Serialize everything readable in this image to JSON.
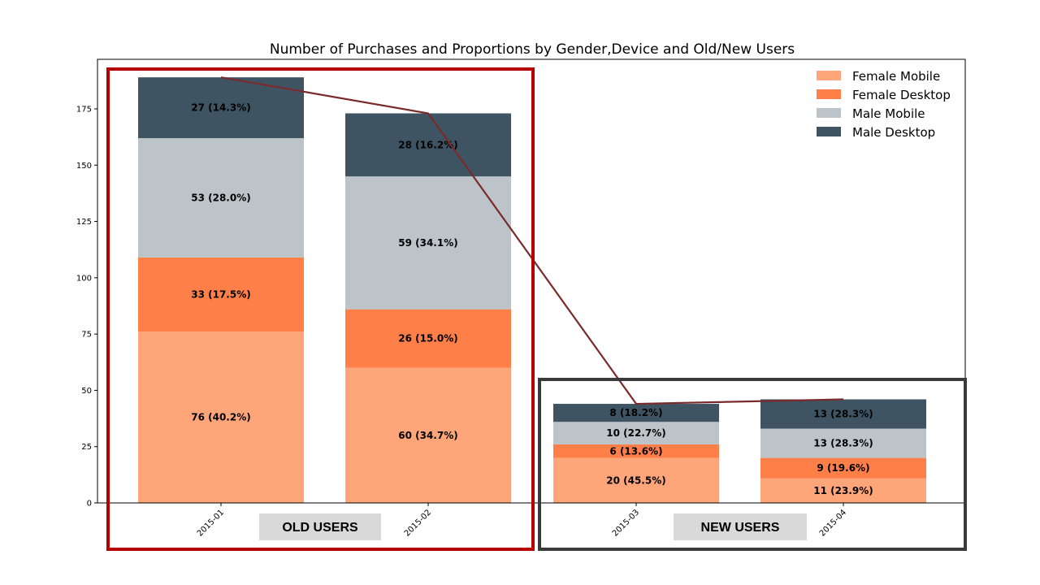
{
  "chart_data": {
    "type": "bar",
    "stacked": true,
    "title": "Number of Purchases and Proportions by Gender,Device and Old/New Users",
    "categories": [
      "2015-01",
      "2015-02",
      "2015-03",
      "2015-04"
    ],
    "series": [
      {
        "name": "Female Mobile",
        "color": "#FFA57A",
        "values": [
          76,
          60,
          20,
          11
        ],
        "labels": [
          "76 (40.2%)",
          "60 (34.7%)",
          "20 (45.5%)",
          "11 (23.9%)"
        ]
      },
      {
        "name": "Female Desktop",
        "color": "#FF7F48",
        "values": [
          33,
          26,
          6,
          9
        ],
        "labels": [
          "33 (17.5%)",
          "26 (15.0%)",
          "6 (13.6%)",
          "9 (19.6%)"
        ]
      },
      {
        "name": "Male Mobile",
        "color": "#BCC4C9",
        "values": [
          53,
          59,
          10,
          13
        ],
        "labels": [
          "53 (28.0%)",
          "59 (34.1%)",
          "10 (22.7%)",
          "13 (28.3%)"
        ]
      },
      {
        "name": "Male Desktop",
        "color": "#3E5463",
        "values": [
          27,
          28,
          8,
          13
        ],
        "labels": [
          "27 (14.3%)",
          "28 (16.2%)",
          "8 (18.2%)",
          "13 (28.3%)"
        ]
      }
    ],
    "totals_line": {
      "color": "#7A2A2A",
      "values": [
        189,
        173,
        44,
        46
      ]
    },
    "yticks": [
      0,
      25,
      50,
      75,
      100,
      125,
      150,
      175
    ],
    "ylim": [
      0,
      197
    ],
    "xlabel": "",
    "ylabel": "",
    "grid": false,
    "legend": "top-right",
    "groups": [
      {
        "label": "OLD USERS",
        "categories": [
          "2015-01",
          "2015-02"
        ],
        "frame_color": "#B40000"
      },
      {
        "label": "NEW USERS",
        "categories": [
          "2015-03",
          "2015-04"
        ],
        "frame_color": "#3A3A3A"
      }
    ]
  }
}
